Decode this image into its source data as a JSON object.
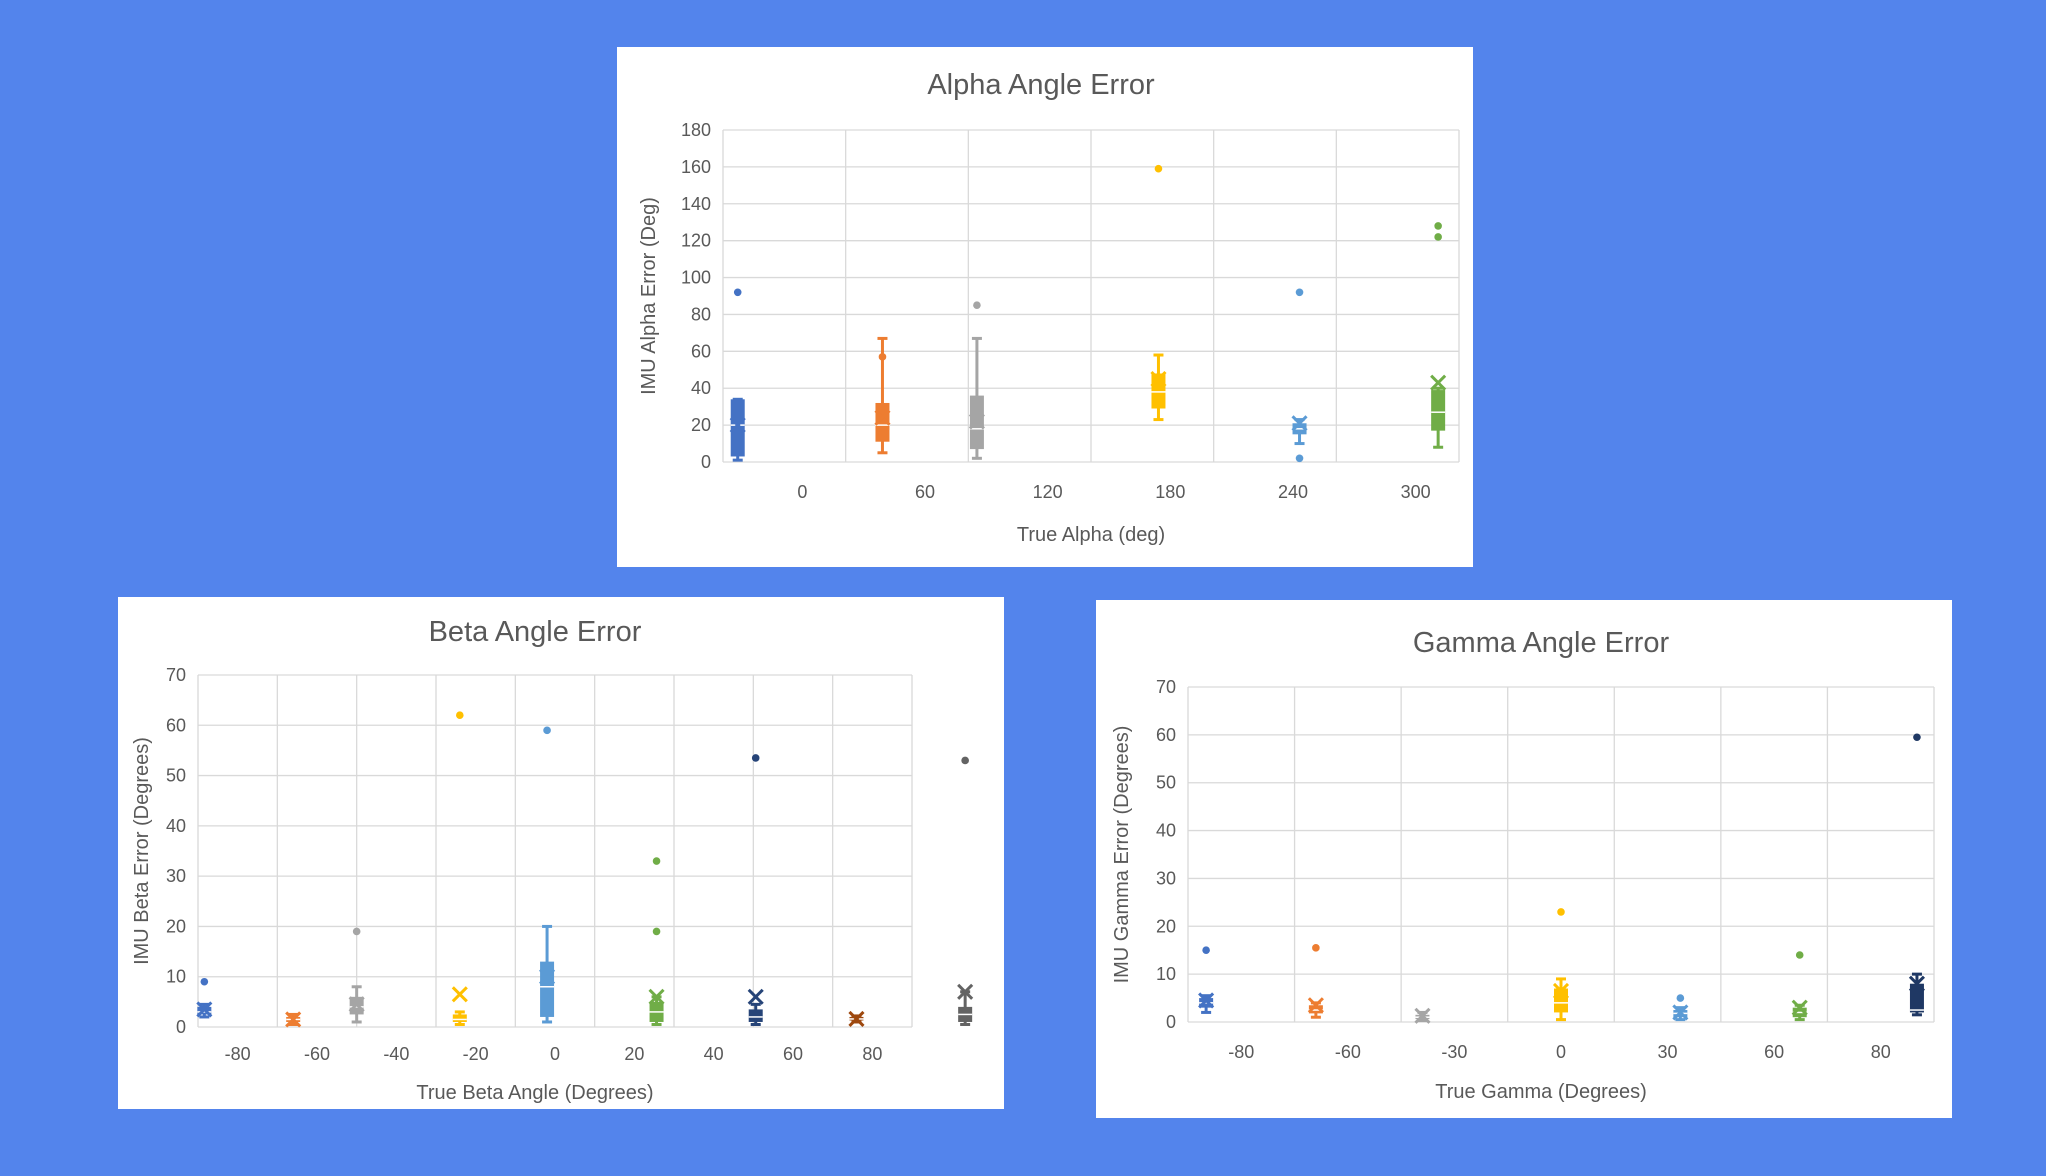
{
  "chart_data": [
    {
      "type": "box-whisker",
      "title": "Alpha Angle Error",
      "xlabel": "True Alpha (deg)",
      "ylabel": "IMU Alpha Error (Deg)",
      "ylim": [
        0,
        180
      ],
      "yticks": [
        0,
        20,
        40,
        60,
        80,
        100,
        120,
        140,
        160,
        180
      ],
      "categories": [
        "0",
        "60",
        "120",
        "180",
        "240",
        "300"
      ],
      "grid": true,
      "series": [
        {
          "color": "#4472c4",
          "min": 1,
          "q1": 3,
          "median": 20,
          "q3": 34,
          "max": 34,
          "mean": 20,
          "outliers": [
            92
          ]
        },
        {
          "color": "#ed7d31",
          "min": 5,
          "q1": 11,
          "median": 20,
          "q3": 32,
          "max": 67,
          "mean": 24,
          "outliers": [
            57
          ]
        },
        {
          "color": "#a5a5a5",
          "min": 2,
          "q1": 7,
          "median": 18,
          "q3": 36,
          "max": 67,
          "mean": 22,
          "outliers": [
            85
          ]
        },
        {
          "color": "#ffc000",
          "min": 23,
          "q1": 29,
          "median": 38,
          "q3": 48,
          "max": 58,
          "mean": 45,
          "outliers": [
            159
          ]
        },
        {
          "color": "#5b9bd5",
          "min": 10,
          "q1": 15,
          "median": 18,
          "q3": 21,
          "max": 23,
          "mean": 21,
          "outliers": [
            92,
            2
          ]
        },
        {
          "color": "#70ad47",
          "min": 8,
          "q1": 17,
          "median": 27,
          "q3": 39,
          "max": 40,
          "mean": 43,
          "outliers": [
            128,
            122
          ]
        }
      ]
    },
    {
      "type": "box-whisker",
      "title": "Beta Angle Error",
      "xlabel": "True Beta Angle (Degrees)",
      "ylabel": "IMU Beta Error (Degrees)",
      "ylim": [
        0,
        70
      ],
      "yticks": [
        0,
        10,
        20,
        30,
        40,
        50,
        60,
        70
      ],
      "categories": [
        "-80",
        "-60",
        "-40",
        "-20",
        "0",
        "20",
        "40",
        "60",
        "80"
      ],
      "grid": true,
      "series": [
        {
          "color": "#4472c4",
          "min": 2,
          "q1": 2.5,
          "median": 3,
          "q3": 4,
          "max": 4.5,
          "mean": 3.5,
          "outliers": [
            9
          ]
        },
        {
          "color": "#ed7d31",
          "min": 0.5,
          "q1": 1,
          "median": 1.5,
          "q3": 2,
          "max": 2.5,
          "mean": 1.5,
          "outliers": []
        },
        {
          "color": "#a5a5a5",
          "min": 1,
          "q1": 2.5,
          "median": 4,
          "q3": 6,
          "max": 8,
          "mean": 4.5,
          "outliers": [
            19
          ]
        },
        {
          "color": "#ffc000",
          "min": 0.5,
          "q1": 1,
          "median": 1.5,
          "q3": 2.5,
          "max": 3,
          "mean": 6.5,
          "outliers": [
            62
          ]
        },
        {
          "color": "#5b9bd5",
          "min": 1,
          "q1": 2,
          "median": 8,
          "q3": 13,
          "max": 20,
          "mean": 10,
          "outliers": [
            59
          ]
        },
        {
          "color": "#70ad47",
          "min": 0.5,
          "q1": 1,
          "median": 3,
          "q3": 5,
          "max": 6,
          "mean": 6,
          "outliers": [
            33,
            19
          ]
        },
        {
          "color": "#264478",
          "min": 0.5,
          "q1": 1,
          "median": 2,
          "q3": 3.5,
          "max": 4.5,
          "mean": 6,
          "outliers": [
            53.5
          ]
        },
        {
          "color": "#9e480e",
          "min": 1,
          "q1": 1.3,
          "median": 1.6,
          "q3": 2,
          "max": 2.2,
          "mean": 1.6,
          "outliers": []
        },
        {
          "color": "#636363",
          "min": 0.5,
          "q1": 1,
          "median": 2.5,
          "q3": 4,
          "max": 7,
          "mean": 7,
          "outliers": [
            53
          ]
        }
      ]
    },
    {
      "type": "box-whisker",
      "title": "Gamma Angle Error",
      "xlabel": "True Gamma (Degrees)",
      "ylabel": "IMU Gamma Error (Degrees)",
      "ylim": [
        0,
        70
      ],
      "yticks": [
        0,
        10,
        20,
        30,
        40,
        50,
        60,
        70
      ],
      "categories": [
        "-80",
        "-60",
        "-30",
        "0",
        "30",
        "60",
        "80"
      ],
      "grid": true,
      "series": [
        {
          "color": "#4472c4",
          "min": 2,
          "q1": 3,
          "median": 4,
          "q3": 5,
          "max": 5.5,
          "mean": 4.5,
          "outliers": [
            15
          ]
        },
        {
          "color": "#ed7d31",
          "min": 1,
          "q1": 1.8,
          "median": 2.5,
          "q3": 3.5,
          "max": 4,
          "mean": 3.5,
          "outliers": [
            15.5
          ]
        },
        {
          "color": "#a5a5a5",
          "min": 0.3,
          "q1": 0.6,
          "median": 1,
          "q3": 1.5,
          "max": 2,
          "mean": 1.3,
          "outliers": []
        },
        {
          "color": "#ffc000",
          "min": 0.5,
          "q1": 2,
          "median": 4,
          "q3": 7,
          "max": 9,
          "mean": 6.5,
          "outliers": [
            23
          ]
        },
        {
          "color": "#5b9bd5",
          "min": 0.5,
          "q1": 1,
          "median": 1.8,
          "q3": 2.5,
          "max": 3,
          "mean": 2,
          "outliers": [
            5
          ]
        },
        {
          "color": "#70ad47",
          "min": 0.5,
          "q1": 1,
          "median": 2,
          "q3": 3,
          "max": 3.5,
          "mean": 3,
          "outliers": [
            14
          ]
        },
        {
          "color": "#1f3864",
          "min": 1.5,
          "q1": 2,
          "median": 2.5,
          "q3": 8,
          "max": 10,
          "mean": 8,
          "outliers": [
            59.5
          ]
        }
      ]
    }
  ]
}
